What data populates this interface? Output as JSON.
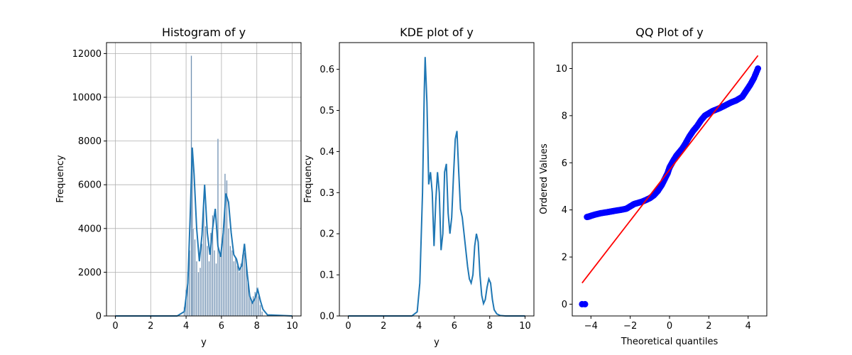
{
  "colors": {
    "seaborn_blue": "#1f77b4",
    "hist_fill": "#6f8fb0",
    "qq_points": "#0000ff",
    "qq_line": "#ff0000",
    "grid": "#b0b0b0"
  },
  "chart_data": [
    {
      "type": "bar",
      "title": "Histogram of y",
      "xlabel": "y",
      "ylabel": "Frequency",
      "xlim": [
        -0.5,
        10.5
      ],
      "ylim": [
        0,
        12500
      ],
      "xticks": [
        0,
        2,
        4,
        6,
        8,
        10
      ],
      "yticks": [
        0,
        2000,
        4000,
        6000,
        8000,
        10000,
        12000
      ],
      "grid": true,
      "bins": {
        "x": [
          3.9,
          4.0,
          4.1,
          4.2,
          4.3,
          4.35,
          4.4,
          4.5,
          4.6,
          4.7,
          4.8,
          4.9,
          5.0,
          5.1,
          5.2,
          5.3,
          5.4,
          5.5,
          5.6,
          5.7,
          5.8,
          5.9,
          6.0,
          6.1,
          6.2,
          6.3,
          6.4,
          6.5,
          6.6,
          6.7,
          6.8,
          6.9,
          7.0,
          7.1,
          7.2,
          7.3,
          7.4,
          7.5,
          7.6,
          7.7,
          7.8,
          7.9,
          8.0,
          8.1,
          8.2,
          8.3
        ],
        "values": [
          400,
          1200,
          2000,
          3000,
          11900,
          7000,
          4000,
          3500,
          2500,
          2000,
          2200,
          3300,
          5000,
          4100,
          3200,
          2500,
          3800,
          4600,
          3000,
          2400,
          8100,
          2800,
          3300,
          3800,
          6500,
          6200,
          4000,
          3200,
          3000,
          2500,
          2700,
          2300,
          2000,
          2400,
          2800,
          2900,
          2600,
          1500,
          900,
          700,
          900,
          1100,
          1300,
          900,
          500,
          200
        ],
        "width": 0.06
      },
      "kde": {
        "x": [
          0,
          3.5,
          3.9,
          4.1,
          4.25,
          4.35,
          4.45,
          4.6,
          4.75,
          4.9,
          5.05,
          5.2,
          5.35,
          5.5,
          5.65,
          5.8,
          5.95,
          6.1,
          6.25,
          6.4,
          6.55,
          6.7,
          6.85,
          7.0,
          7.15,
          7.3,
          7.45,
          7.6,
          7.75,
          7.9,
          8.05,
          8.2,
          8.35,
          8.6,
          10
        ],
        "y": [
          0,
          0,
          200,
          1500,
          5000,
          7700,
          6500,
          4000,
          2500,
          3700,
          6000,
          3800,
          2800,
          4000,
          4900,
          3200,
          2700,
          3800,
          5600,
          5200,
          3800,
          2800,
          2600,
          2100,
          2300,
          3300,
          2000,
          900,
          600,
          800,
          1200,
          700,
          300,
          50,
          0
        ]
      }
    },
    {
      "type": "line",
      "title": "KDE plot of y",
      "xlabel": "y",
      "ylabel": "Frequency",
      "xlim": [
        -0.5,
        10.5
      ],
      "ylim": [
        0,
        0.665
      ],
      "xticks": [
        0,
        2,
        4,
        6,
        8,
        10
      ],
      "yticks": [
        0.0,
        0.1,
        0.2,
        0.3,
        0.4,
        0.5,
        0.6
      ],
      "grid": false,
      "series": [
        {
          "x": [
            0,
            3.6,
            3.9,
            4.05,
            4.2,
            4.3,
            4.35,
            4.45,
            4.55,
            4.65,
            4.75,
            4.85,
            4.95,
            5.05,
            5.15,
            5.25,
            5.35,
            5.45,
            5.55,
            5.65,
            5.75,
            5.85,
            5.95,
            6.05,
            6.15,
            6.25,
            6.35,
            6.45,
            6.55,
            6.65,
            6.75,
            6.85,
            6.95,
            7.05,
            7.15,
            7.25,
            7.35,
            7.45,
            7.55,
            7.65,
            7.75,
            7.85,
            7.95,
            8.05,
            8.15,
            8.25,
            8.4,
            8.6,
            8.9,
            10
          ],
          "y": [
            0,
            0,
            0.01,
            0.08,
            0.3,
            0.55,
            0.63,
            0.52,
            0.32,
            0.35,
            0.3,
            0.17,
            0.28,
            0.35,
            0.3,
            0.16,
            0.2,
            0.35,
            0.37,
            0.25,
            0.2,
            0.24,
            0.34,
            0.43,
            0.45,
            0.35,
            0.26,
            0.24,
            0.2,
            0.16,
            0.12,
            0.09,
            0.08,
            0.1,
            0.17,
            0.2,
            0.18,
            0.1,
            0.05,
            0.03,
            0.04,
            0.07,
            0.09,
            0.08,
            0.04,
            0.015,
            0.005,
            0.001,
            0,
            0
          ]
        }
      ]
    },
    {
      "type": "scatter",
      "title": "QQ Plot of y",
      "xlabel": "Theoretical quantiles",
      "ylabel": "Ordered Values",
      "xlim": [
        -4.95,
        4.95
      ],
      "ylim": [
        -0.5,
        11.1
      ],
      "xticks": [
        -4,
        -2,
        0,
        2,
        4
      ],
      "yticks": [
        0,
        2,
        4,
        6,
        8,
        10
      ],
      "grid": false,
      "points": {
        "x": [
          -4.45,
          -4.3,
          -4.2,
          -4.1,
          -4.0,
          -3.8,
          -3.5,
          -3.2,
          -3.0,
          -2.8,
          -2.5,
          -2.2,
          -2.0,
          -1.8,
          -1.6,
          -1.4,
          -1.2,
          -1.0,
          -0.8,
          -0.6,
          -0.4,
          -0.25,
          -0.1,
          0.0,
          0.1,
          0.2,
          0.35,
          0.5,
          0.65,
          0.8,
          1.0,
          1.2,
          1.4,
          1.6,
          1.8,
          2.0,
          2.2,
          2.5,
          2.8,
          3.1,
          3.4,
          3.7,
          3.9,
          4.1,
          4.3,
          4.5
        ],
        "y": [
          0.0,
          0.0,
          3.7,
          3.72,
          3.75,
          3.8,
          3.86,
          3.9,
          3.93,
          3.96,
          4.0,
          4.05,
          4.15,
          4.25,
          4.3,
          4.35,
          4.42,
          4.5,
          4.62,
          4.8,
          5.05,
          5.3,
          5.55,
          5.8,
          5.95,
          6.1,
          6.3,
          6.45,
          6.6,
          6.8,
          7.1,
          7.35,
          7.55,
          7.8,
          8.0,
          8.1,
          8.2,
          8.3,
          8.42,
          8.55,
          8.65,
          8.8,
          9.05,
          9.3,
          9.6,
          10.0
        ]
      },
      "fit_line": {
        "x": [
          -4.45,
          4.5
        ],
        "y": [
          0.9,
          10.55
        ]
      }
    }
  ]
}
